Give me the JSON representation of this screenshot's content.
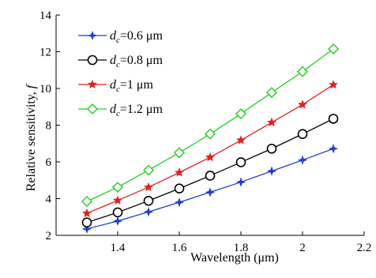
{
  "chart_data": {
    "type": "line",
    "xlabel": "Wavelength (μm)",
    "ylabel": "Relative sensitivity, ",
    "ylabel_symbol": "f",
    "xlim": [
      1.2,
      2.2
    ],
    "ylim": [
      2,
      14
    ],
    "xticks": [
      1.4,
      1.6,
      1.8,
      2,
      2.2
    ],
    "xtick_labels": [
      "1.4",
      "1.6",
      "1.8",
      "2",
      "2.2"
    ],
    "yticks": [
      2,
      4,
      6,
      8,
      10,
      12,
      14
    ],
    "ytick_labels": [
      "2",
      "4",
      "6",
      "8",
      "10",
      "12",
      "14"
    ],
    "grid": false,
    "legend_position": "top-left",
    "x": [
      1.3,
      1.4,
      1.5,
      1.6,
      1.7,
      1.8,
      1.9,
      2.0,
      2.1
    ],
    "series": [
      {
        "name": "dc=0.6 μm",
        "label_symbol": "d",
        "label_sub": "c",
        "label_rest": "=0.6 μm",
        "color": "#1f3fd0",
        "marker": "star4",
        "values": [
          2.35,
          2.78,
          3.28,
          3.8,
          4.35,
          4.9,
          5.5,
          6.1,
          6.72
        ]
      },
      {
        "name": "dc=0.8 μm",
        "label_symbol": "d",
        "label_sub": "c",
        "label_rest": "=0.8 μm",
        "color": "#000000",
        "marker": "circle",
        "values": [
          2.7,
          3.25,
          3.88,
          4.55,
          5.25,
          5.98,
          6.72,
          7.52,
          8.35
        ]
      },
      {
        "name": "dc=1 μm",
        "label_symbol": "d",
        "label_sub": "c",
        "label_rest": "=1 μm",
        "color": "#e02020",
        "marker": "star5",
        "values": [
          3.2,
          3.9,
          4.62,
          5.42,
          6.25,
          7.18,
          8.15,
          9.12,
          10.2
        ]
      },
      {
        "name": "dc=1.2 μm",
        "label_symbol": "d",
        "label_sub": "c",
        "label_rest": "=1.2 μm",
        "color": "#22cc22",
        "marker": "diamond",
        "values": [
          3.85,
          4.62,
          5.55,
          6.5,
          7.52,
          8.62,
          9.78,
          10.92,
          12.15
        ]
      }
    ]
  }
}
